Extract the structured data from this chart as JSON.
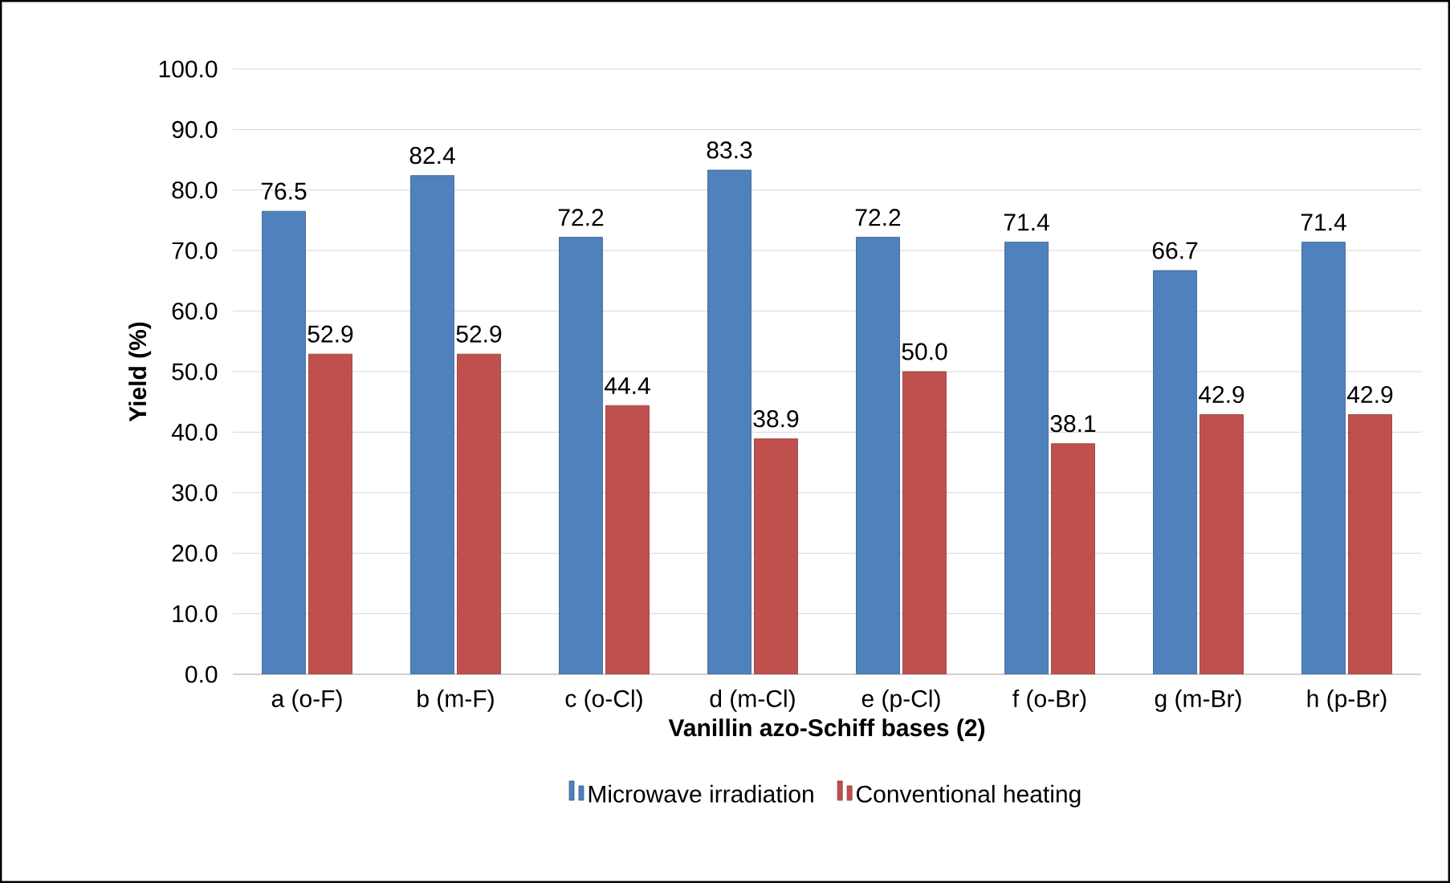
{
  "chart_data": {
    "type": "bar",
    "xlabel": "Vanillin azo-Schiff bases (2)",
    "ylabel": "Yield (%)",
    "categories": [
      "a (o-F)",
      "b (m-F)",
      "c (o-Cl)",
      "d (m-Cl)",
      "e (p-Cl)",
      "f (o-Br)",
      "g (m-Br)",
      "h (p-Br)"
    ],
    "series": [
      {
        "name": "Microwave irradiation",
        "color": "#4f81bd",
        "values": [
          76.5,
          82.4,
          72.2,
          83.3,
          72.2,
          71.4,
          66.7,
          71.4
        ],
        "value_labels": [
          "76.5",
          "82.4",
          "72.2",
          "83.3",
          "72.2",
          "71.4",
          "66.7",
          "71.4"
        ]
      },
      {
        "name": "Conventional heating",
        "color": "#c0504d",
        "values": [
          52.9,
          52.9,
          44.4,
          38.9,
          50.0,
          38.1,
          42.9,
          42.9
        ],
        "value_labels": [
          "52.9",
          "52.9",
          "44.4",
          "38.9",
          "50.0",
          "38.1",
          "42.9",
          "42.9"
        ]
      }
    ],
    "ylim": [
      0,
      100
    ],
    "yticks": [
      {
        "value": 0,
        "label": "0.0"
      },
      {
        "value": 10,
        "label": "10.0"
      },
      {
        "value": 20,
        "label": "20.0"
      },
      {
        "value": 30,
        "label": "30.0"
      },
      {
        "value": 40,
        "label": "40.0"
      },
      {
        "value": 50,
        "label": "50.0"
      },
      {
        "value": 60,
        "label": "60.0"
      },
      {
        "value": 70,
        "label": "70.0"
      },
      {
        "value": 80,
        "label": "80.0"
      },
      {
        "value": 90,
        "label": "90.0"
      },
      {
        "value": 100,
        "label": "100.0"
      }
    ],
    "grid": "y",
    "legend": "bottom"
  }
}
